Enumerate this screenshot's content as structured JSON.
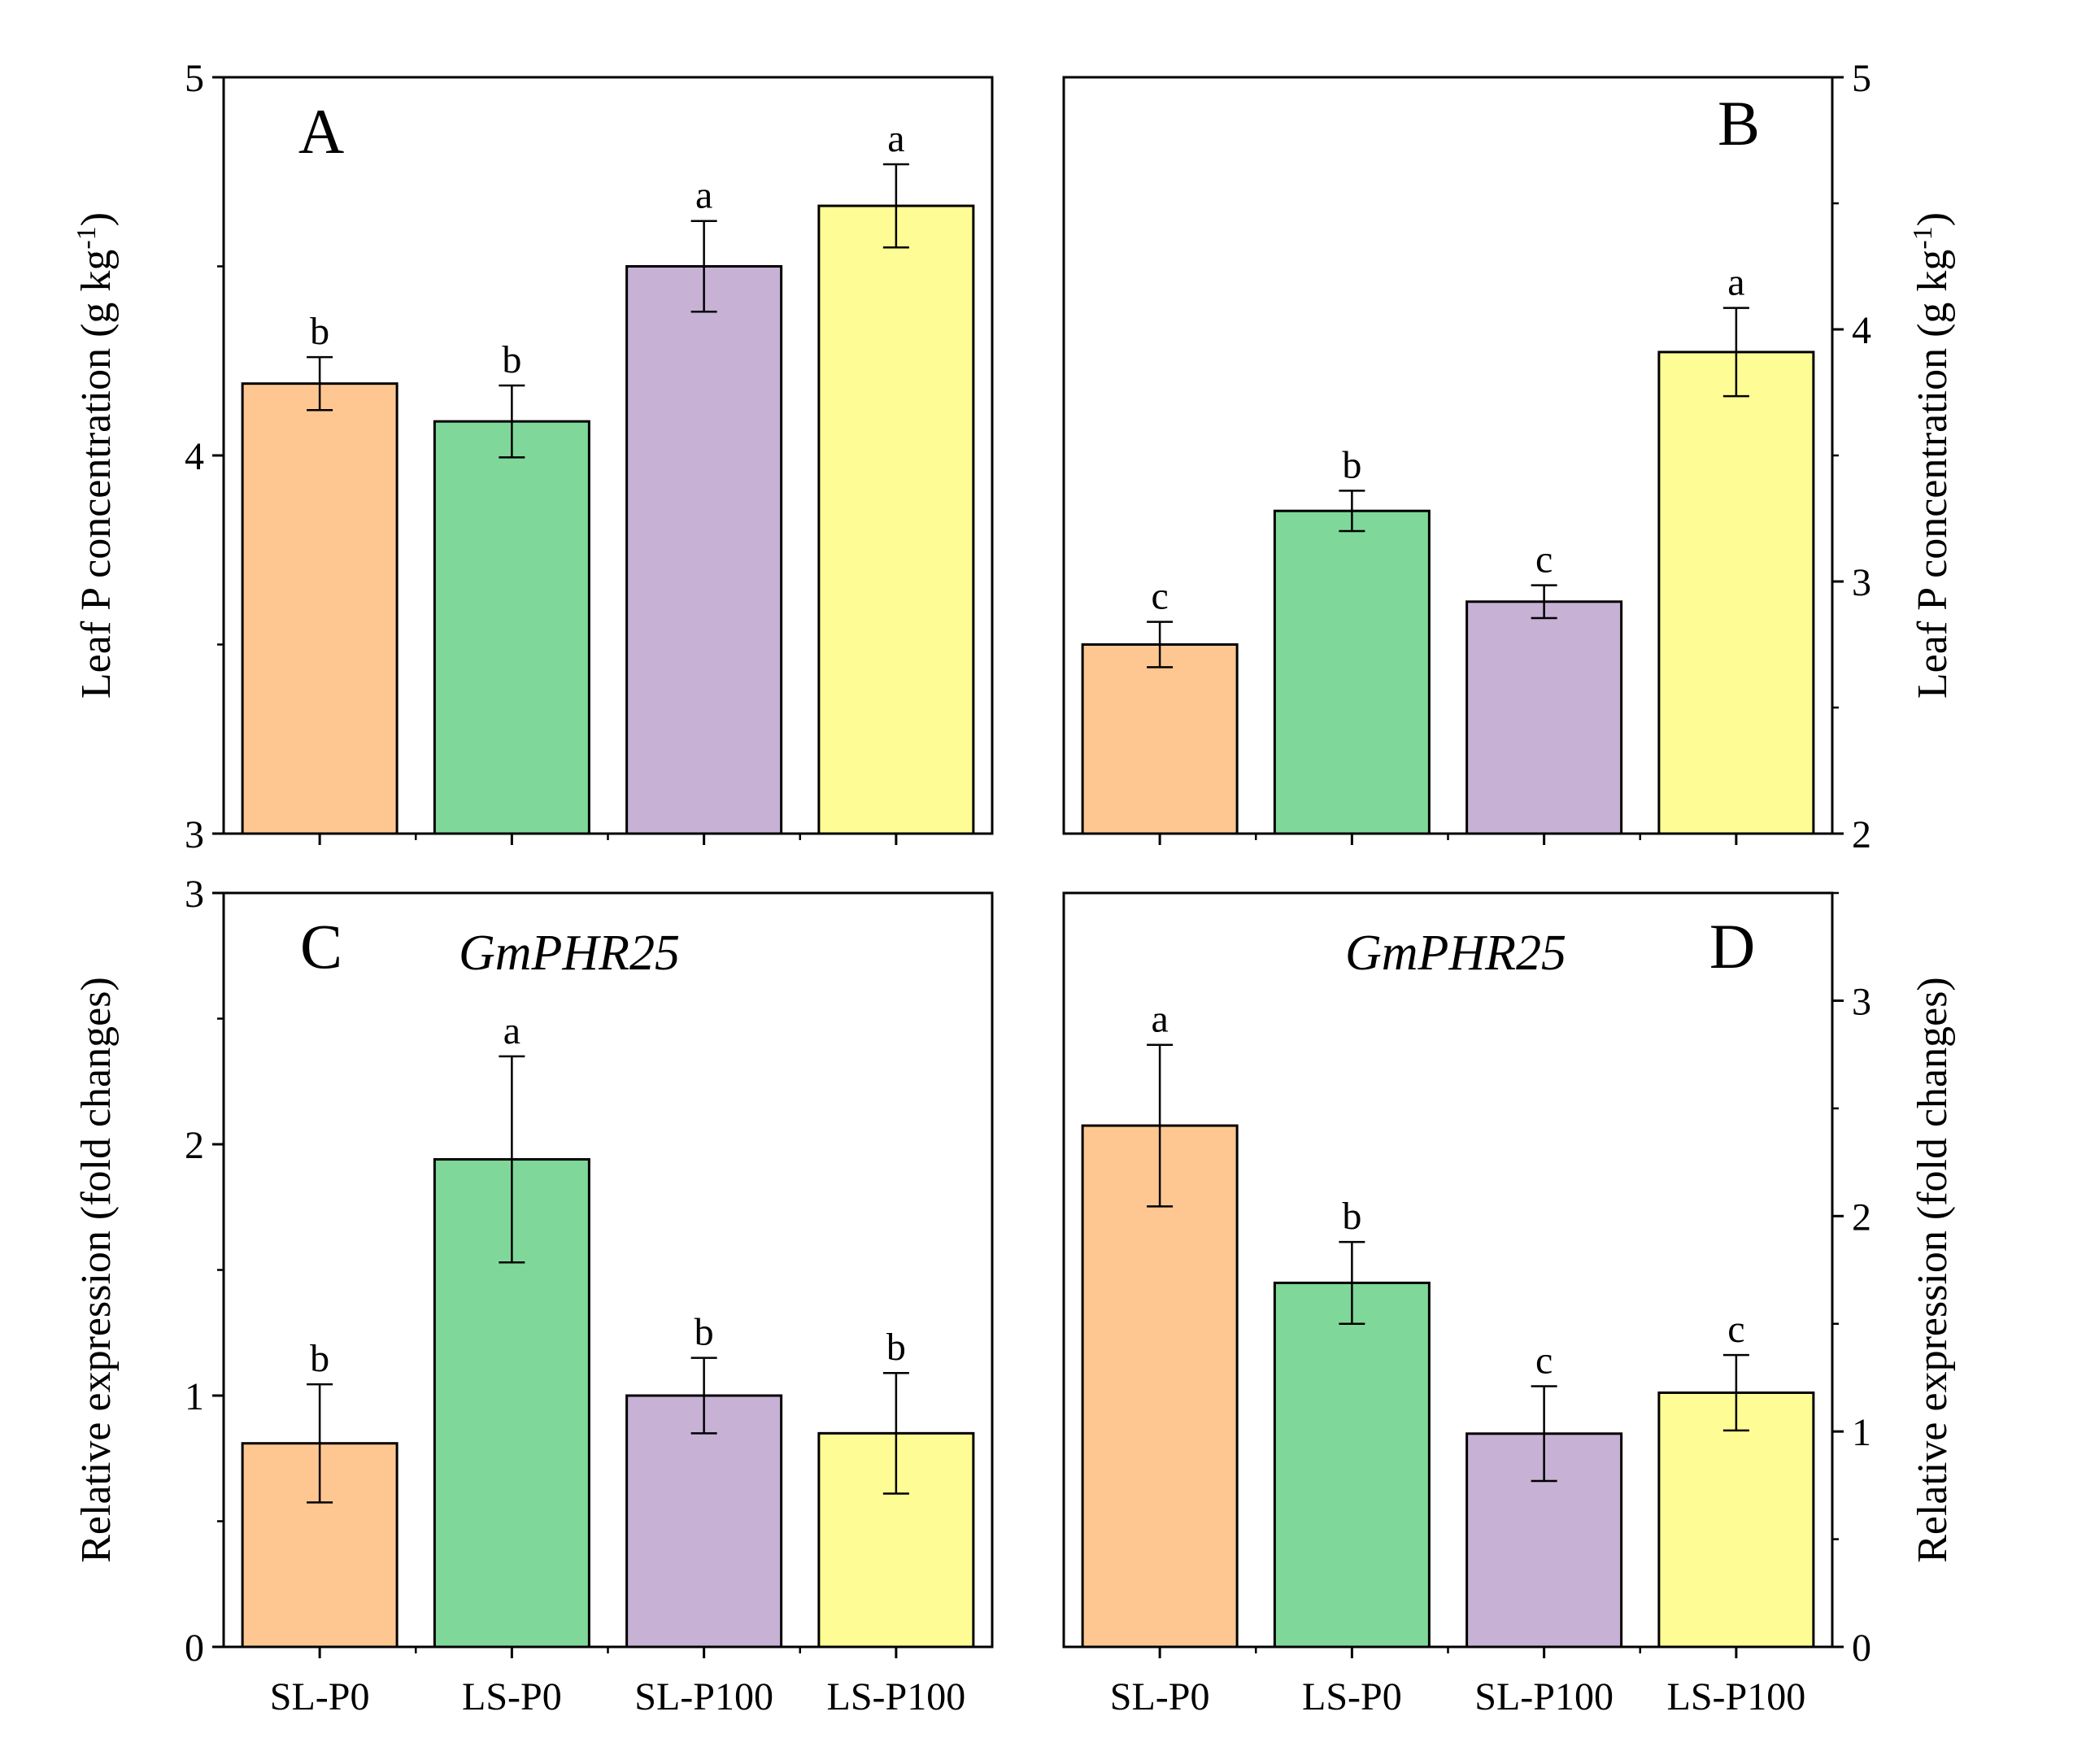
{
  "categories": [
    "SL-P0",
    "LS-P0",
    "SL-P100",
    "LS-P100"
  ],
  "colors": {
    "bars": [
      "#fec792",
      "#7fd899",
      "#c7b1d5",
      "#fefc94"
    ],
    "stroke": "#000000",
    "background": "#ffffff"
  },
  "chart_data": [
    {
      "type": "bar",
      "panel": "A",
      "gene": "",
      "ylabel": "Leaf P concentration (g kg-1)",
      "ylabel_main": "Leaf P concentration (g kg",
      "ylabel_sup": "-1",
      "ylabel_end": ")",
      "ylim": [
        3,
        5
      ],
      "yticks": [
        3,
        4,
        5
      ],
      "axis_side": "left",
      "categories": [
        "SL-P0",
        "LS-P0",
        "SL-P100",
        "LS-P100"
      ],
      "values": [
        4.19,
        4.09,
        4.5,
        4.66
      ],
      "errors": [
        0.07,
        0.095,
        0.12,
        0.11
      ],
      "letters": [
        "b",
        "b",
        "a",
        "a"
      ]
    },
    {
      "type": "bar",
      "panel": "B",
      "gene": "",
      "ylabel": "Leaf P concentration (g kg-1)",
      "ylabel_main": "Leaf P concentration (g kg",
      "ylabel_sup": "-1",
      "ylabel_end": ")",
      "ylim": [
        2,
        5
      ],
      "yticks": [
        2,
        3,
        4,
        5
      ],
      "axis_side": "right",
      "categories": [
        "SL-P0",
        "LS-P0",
        "SL-P100",
        "LS-P100"
      ],
      "values": [
        2.75,
        3.28,
        2.92,
        3.91
      ],
      "errors": [
        0.09,
        0.08,
        0.065,
        0.175
      ],
      "letters": [
        "c",
        "b",
        "c",
        "a"
      ]
    },
    {
      "type": "bar",
      "panel": "C",
      "gene": "GmPHR25",
      "ylabel": "Relative expression (fold changes)",
      "ylim": [
        0,
        3
      ],
      "yticks": [
        0,
        1,
        2,
        3
      ],
      "axis_side": "left",
      "categories": [
        "SL-P0",
        "LS-P0",
        "SL-P100",
        "LS-P100"
      ],
      "values": [
        0.81,
        1.94,
        1.0,
        0.85
      ],
      "errors": [
        0.235,
        0.41,
        0.15,
        0.24
      ],
      "letters": [
        "b",
        "a",
        "b",
        "b"
      ]
    },
    {
      "type": "bar",
      "panel": "D",
      "gene": "GmPHR25",
      "ylabel": "Relative expression (fold changes)",
      "ylim": [
        0,
        3.5
      ],
      "yticks": [
        0,
        1,
        2,
        3
      ],
      "axis_side": "right",
      "categories": [
        "SL-P0",
        "LS-P0",
        "SL-P100",
        "LS-P100"
      ],
      "values": [
        2.42,
        1.69,
        0.99,
        1.18
      ],
      "errors": [
        0.375,
        0.19,
        0.22,
        0.175
      ],
      "letters": [
        "a",
        "b",
        "c",
        "c"
      ]
    }
  ]
}
